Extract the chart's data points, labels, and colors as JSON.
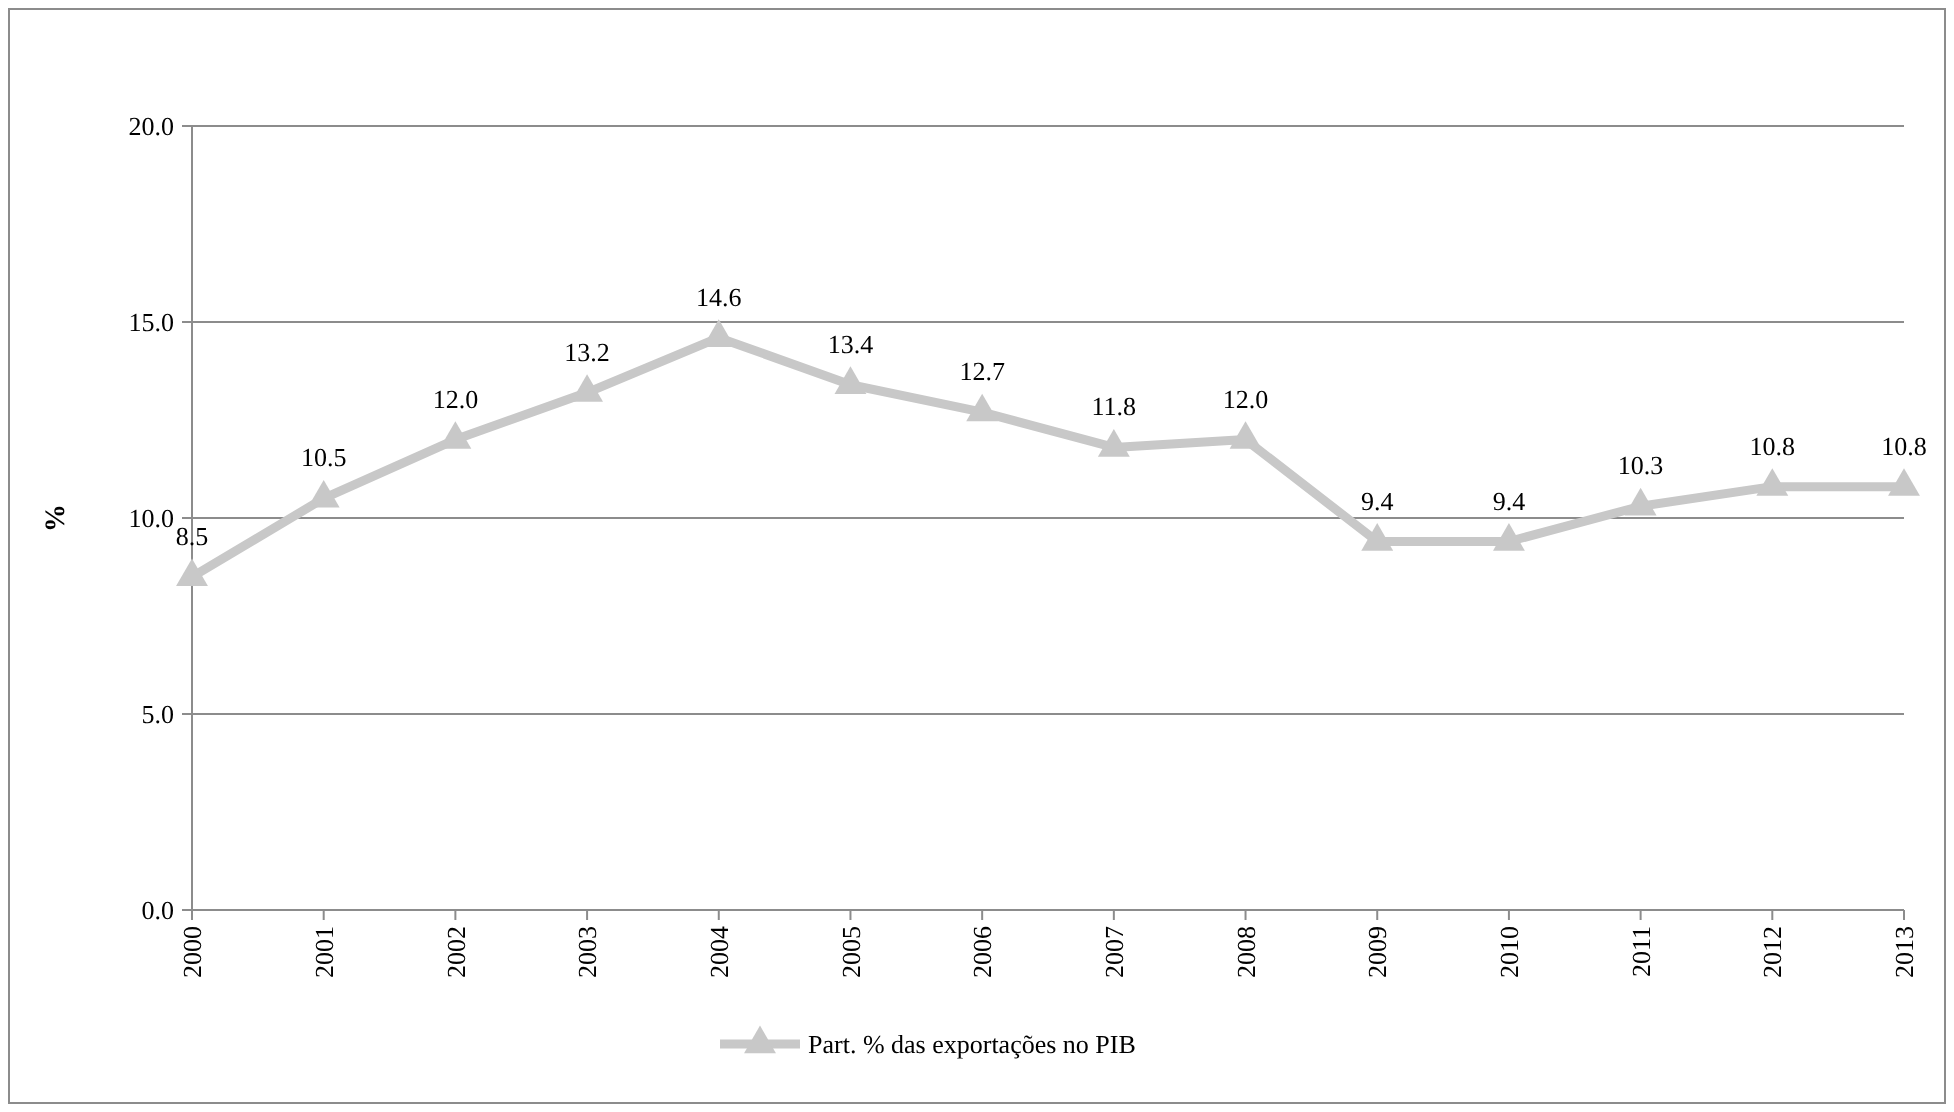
{
  "chart_data": {
    "type": "line",
    "ylabel": "%",
    "categories": [
      "2000",
      "2001",
      "2002",
      "2003",
      "2004",
      "2005",
      "2006",
      "2007",
      "2008",
      "2009",
      "2010",
      "2011",
      "2012",
      "2013"
    ],
    "series": [
      {
        "name": "Part. % das exportações no PIB",
        "color": "#c8c8c8",
        "values": [
          8.5,
          10.5,
          12.0,
          13.2,
          14.6,
          13.4,
          12.7,
          11.8,
          12.0,
          9.4,
          9.4,
          10.3,
          10.8,
          10.8
        ],
        "value_labels": [
          "8.5",
          "10.5",
          "12.0",
          "13.2",
          "14.6",
          "13.4",
          "12.7",
          "11.8",
          "12.0",
          "9.4",
          "9.4",
          "10.3",
          "10.8",
          "10.8"
        ]
      }
    ],
    "ylim": [
      0,
      20
    ],
    "yticks": [
      {
        "value": 0,
        "label": "0.0"
      },
      {
        "value": 5,
        "label": "5.0"
      },
      {
        "value": 10,
        "label": "10.0"
      },
      {
        "value": 15,
        "label": "15.0"
      },
      {
        "value": 20,
        "label": "20.0"
      }
    ],
    "grid": "y",
    "legend": "bottom",
    "marker": "triangle",
    "line_style": "solid"
  }
}
